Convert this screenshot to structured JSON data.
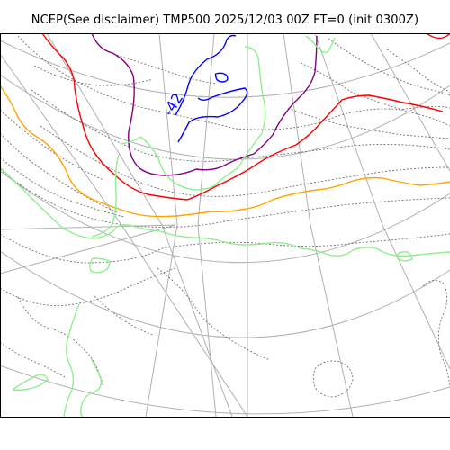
{
  "figure": {
    "title": "NCEP(See disclaimer) TMP500 2025/12/03 00Z FT=0 (init 0300Z)"
  },
  "map": {
    "variable": "TMP500",
    "contour_labels": [
      "-42"
    ],
    "colors": {
      "blue": "#0000ff",
      "purple": "#800080",
      "red": "#ff0000",
      "orange": "#ffa500",
      "green": "#90ee90",
      "grid": "#b0b0b0",
      "coast": "#707070"
    }
  }
}
